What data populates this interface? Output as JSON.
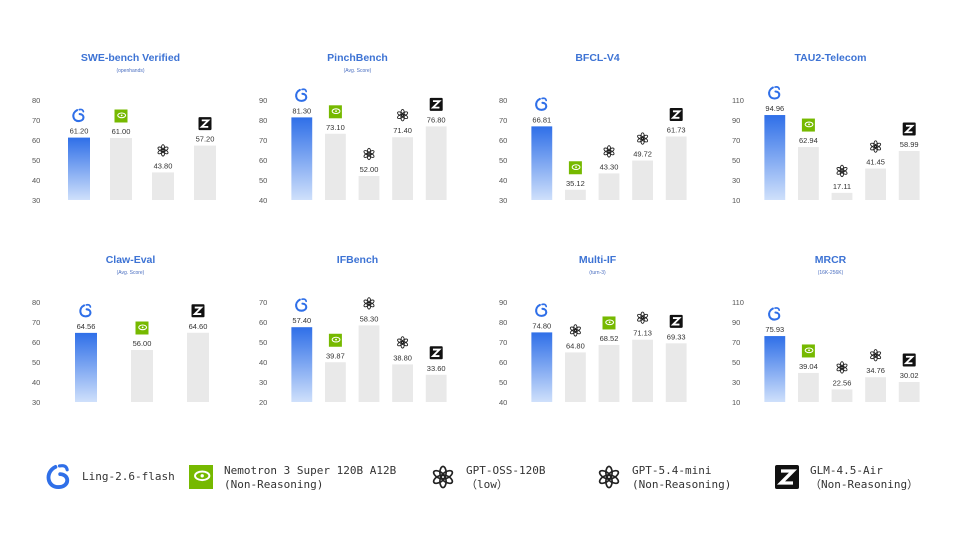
{
  "models": [
    {
      "key": "ling",
      "name": "Ling-2.6-flash",
      "note": "",
      "icon": "ling-swirl-icon",
      "bar_color": "#2f6fe8"
    },
    {
      "key": "nemotron",
      "name": "Nemotron 3 Super 120B A12B",
      "note": "(Non-Reasoning)",
      "icon": "nvidia-logo-icon",
      "bar_color": "#e9e9e9"
    },
    {
      "key": "gptoss",
      "name": "GPT-OSS-120B",
      "note": "（low）",
      "icon": "openai-logo-icon",
      "bar_color": "#e9e9e9"
    },
    {
      "key": "gptmini",
      "name": "GPT-5.4-mini",
      "note": "(Non-Reasoning)",
      "icon": "openai-logo-icon",
      "bar_color": "#e9e9e9"
    },
    {
      "key": "glm",
      "name": "GLM-4.5-Air",
      "note": "（Non-Reasoning）",
      "icon": "zhipu-z-logo-icon",
      "bar_color": "#e9e9e9"
    }
  ],
  "colors": {
    "ling_top": "#2f6fe8",
    "ling_bottom": "#cfe0fb",
    "other_bar": "#e9e9e9",
    "title": "#3d73d4",
    "tick": "#555555",
    "value": "#333333",
    "nvidia_green": "#76b900"
  },
  "chart_data": [
    {
      "type": "bar",
      "title": "SWE-bench Verified",
      "subtitle": "(openhands)",
      "ylim": [
        30,
        80
      ],
      "yticks": [
        30,
        40,
        50,
        60,
        70,
        80
      ],
      "categories": [
        "ling",
        "nemotron",
        "gptoss",
        "glm"
      ],
      "values": [
        61.2,
        61.0,
        43.8,
        57.2
      ],
      "labels": [
        "61.20",
        "61.00",
        "43.80",
        "57.20"
      ]
    },
    {
      "type": "bar",
      "title": "PinchBench",
      "subtitle": "(Avg. Score)",
      "ylim": [
        40,
        90
      ],
      "yticks": [
        40,
        50,
        60,
        70,
        80,
        90
      ],
      "categories": [
        "ling",
        "nemotron",
        "gptoss",
        "gptmini",
        "glm"
      ],
      "values": [
        81.3,
        73.1,
        52.0,
        71.4,
        76.8
      ],
      "labels": [
        "81.30",
        "73.10",
        "52.00",
        "71.40",
        "76.80"
      ]
    },
    {
      "type": "bar",
      "title": "BFCL-V4",
      "subtitle": "",
      "ylim": [
        30,
        80
      ],
      "yticks": [
        30,
        40,
        50,
        60,
        70,
        80
      ],
      "categories": [
        "ling",
        "nemotron",
        "gptoss",
        "gptmini",
        "glm"
      ],
      "values": [
        66.81,
        35.12,
        43.3,
        49.72,
        61.73
      ],
      "labels": [
        "66.81",
        "35.12",
        "43.30",
        "49.72",
        "61.73"
      ]
    },
    {
      "type": "bar",
      "title": "TAU2-Telecom",
      "subtitle": "",
      "ylim": [
        10,
        110
      ],
      "yticks": [
        10,
        30,
        50,
        70,
        90,
        110
      ],
      "categories": [
        "ling",
        "nemotron",
        "gptoss",
        "gptmini",
        "glm"
      ],
      "values": [
        94.96,
        62.94,
        17.11,
        41.45,
        58.99
      ],
      "labels": [
        "94.96",
        "62.94",
        "17.11",
        "41.45",
        "58.99"
      ]
    },
    {
      "type": "bar",
      "title": "Claw-Eval",
      "subtitle": "(Avg. Score)",
      "ylim": [
        30,
        80
      ],
      "yticks": [
        30,
        40,
        50,
        60,
        70,
        80
      ],
      "categories": [
        "ling",
        "nemotron",
        "glm"
      ],
      "values": [
        64.56,
        56.0,
        64.6
      ],
      "labels": [
        "64.56",
        "56.00",
        "64.60"
      ]
    },
    {
      "type": "bar",
      "title": "IFBench",
      "subtitle": "",
      "ylim": [
        20,
        70
      ],
      "yticks": [
        20,
        30,
        40,
        50,
        60,
        70
      ],
      "categories": [
        "ling",
        "nemotron",
        "gptoss",
        "gptmini",
        "glm"
      ],
      "values": [
        57.4,
        39.87,
        58.3,
        38.8,
        33.6
      ],
      "labels": [
        "57.40",
        "39.87",
        "58.30",
        "38.80",
        "33.60"
      ]
    },
    {
      "type": "bar",
      "title": "Multi-IF",
      "subtitle": "(turn-3)",
      "ylim": [
        40,
        90
      ],
      "yticks": [
        40,
        50,
        60,
        70,
        80,
        90
      ],
      "categories": [
        "ling",
        "gptoss",
        "nemotron",
        "gptmini",
        "glm"
      ],
      "values": [
        74.8,
        64.8,
        68.52,
        71.13,
        69.33
      ],
      "labels": [
        "74.80",
        "64.80",
        "68.52",
        "71.13",
        "69.33"
      ]
    },
    {
      "type": "bar",
      "title": "MRCR",
      "subtitle": "(16K-256K)",
      "ylim": [
        10,
        110
      ],
      "yticks": [
        10,
        30,
        50,
        70,
        90,
        110
      ],
      "categories": [
        "ling",
        "nemotron",
        "gptoss",
        "gptmini",
        "glm"
      ],
      "values": [
        75.93,
        39.04,
        22.56,
        34.76,
        30.02
      ],
      "labels": [
        "75.93",
        "39.04",
        "22.56",
        "34.76",
        "30.02"
      ]
    }
  ]
}
